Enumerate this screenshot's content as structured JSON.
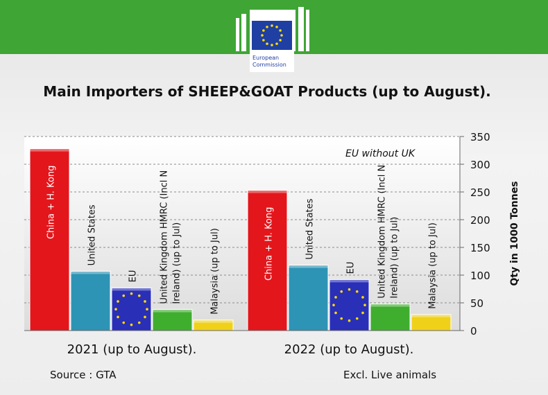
{
  "header": {
    "logo_line1": "European",
    "logo_line2": "Commission"
  },
  "chart_data": {
    "type": "bar",
    "title": "Main Importers of SHEEP&GOAT Products (up to August).",
    "ylabel": "Qty in 1000 Tonnes",
    "ylim": [
      0,
      350
    ],
    "yticks": [
      0,
      50,
      100,
      150,
      200,
      250,
      300,
      350
    ],
    "annotation": "EU without UK",
    "groups": [
      "2021 (up to August).",
      "2022 (up to August)."
    ],
    "series": [
      {
        "name": "China + H. Kong",
        "values": [
          328,
          253
        ],
        "color": "#e3161c"
      },
      {
        "name": "United States",
        "values": [
          107,
          118
        ],
        "color": "#2e94b5"
      },
      {
        "name": "EU",
        "values": [
          77,
          92
        ],
        "color": "#2a2fb8"
      },
      {
        "name": "United Kingdom HMRC (Incl N Ireland) (up to Jul)",
        "values": [
          38,
          48
        ],
        "color": "#3fae2f"
      },
      {
        "name": "Malaysia (up to Jul)",
        "values": [
          19,
          29
        ],
        "color": "#f0d11a"
      }
    ]
  },
  "footer": {
    "source": "Source : GTA",
    "note": "Excl. Live animals"
  }
}
